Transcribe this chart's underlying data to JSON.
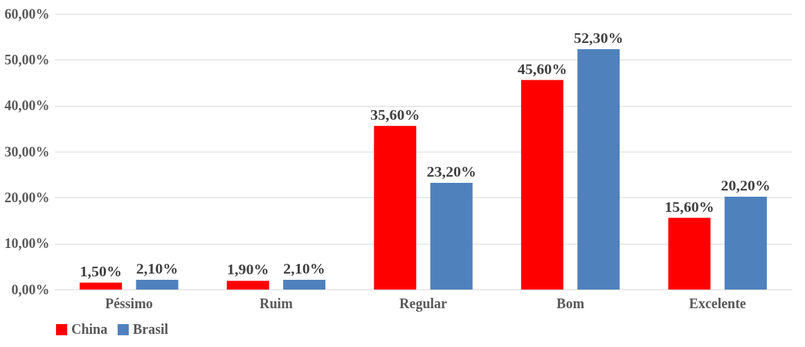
{
  "chart_data": {
    "type": "bar",
    "categories": [
      "Péssimo",
      "Ruim",
      "Regular",
      "Bom",
      "Excelente"
    ],
    "series": [
      {
        "name": "China",
        "color": "#ff0000",
        "values": [
          1.5,
          1.9,
          35.6,
          45.6,
          15.6
        ],
        "value_labels": [
          "1,50%",
          "1,90%",
          "35,60%",
          "45,60%",
          "15,60%"
        ]
      },
      {
        "name": "Brasil",
        "color": "#4f81bd",
        "values": [
          2.1,
          2.1,
          23.2,
          52.3,
          20.2
        ],
        "value_labels": [
          "2,10%",
          "2,10%",
          "23,20%",
          "52,30%",
          "20,20%"
        ]
      }
    ],
    "ylim": [
      0,
      60
    ],
    "yticks": [
      {
        "value": 0,
        "label": "0,00%"
      },
      {
        "value": 10,
        "label": "10,00%"
      },
      {
        "value": 20,
        "label": "20,00%"
      },
      {
        "value": 30,
        "label": "30,00%"
      },
      {
        "value": 40,
        "label": "40,00%"
      },
      {
        "value": 50,
        "label": "50,00%"
      },
      {
        "value": 60,
        "label": "60,00%"
      }
    ],
    "grid": "y",
    "legend": "bottom"
  }
}
